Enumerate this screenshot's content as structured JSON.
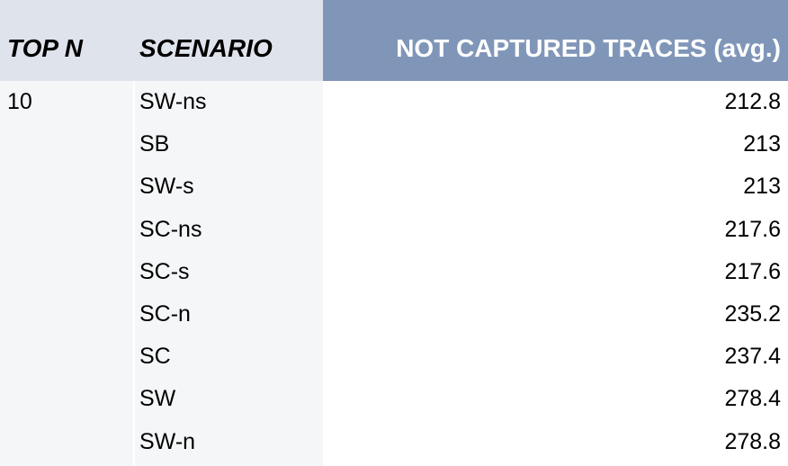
{
  "header": {
    "top_n": "TOP N",
    "scenario": "SCENARIO",
    "traces": "NOT CAPTURED TRACES (avg.)"
  },
  "colors": {
    "header_left_bg": "#dfe3ec",
    "header_right_bg": "#8096b9",
    "body_left_bg": "#f5f6f7"
  },
  "rows": [
    {
      "top_n": "10",
      "scenario": "SW-ns",
      "value": "212.8"
    },
    {
      "top_n": "",
      "scenario": "SB",
      "value": "213"
    },
    {
      "top_n": "",
      "scenario": "SW-s",
      "value": "213"
    },
    {
      "top_n": "",
      "scenario": "SC-ns",
      "value": "217.6"
    },
    {
      "top_n": "",
      "scenario": "SC-s",
      "value": "217.6"
    },
    {
      "top_n": "",
      "scenario": "SC-n",
      "value": "235.2"
    },
    {
      "top_n": "",
      "scenario": "SC",
      "value": "237.4"
    },
    {
      "top_n": "",
      "scenario": "SW",
      "value": "278.4"
    },
    {
      "top_n": "",
      "scenario": "SW-n",
      "value": "278.8"
    }
  ]
}
